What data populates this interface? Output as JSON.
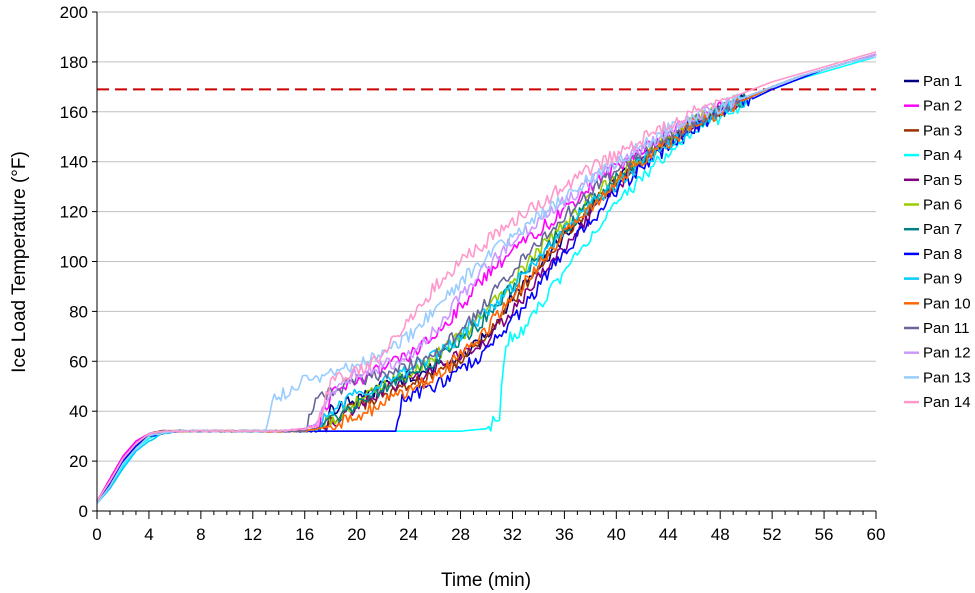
{
  "chart_data": {
    "type": "line",
    "title": "",
    "xlabel": "Time (min)",
    "ylabel": "Ice Load Temperature (°F)",
    "xlim": [
      0,
      60
    ],
    "ylim": [
      0,
      200
    ],
    "x_ticks": [
      0,
      4,
      8,
      12,
      16,
      20,
      24,
      28,
      32,
      36,
      40,
      44,
      48,
      52,
      56,
      60
    ],
    "y_ticks": [
      0,
      20,
      40,
      60,
      80,
      100,
      120,
      140,
      160,
      180,
      200
    ],
    "grid": "horizontal",
    "legend_position": "right",
    "reference_line": {
      "y": 169,
      "color": "#cc0000",
      "style": "dashed"
    },
    "series": [
      {
        "name": "Pan 1",
        "color": "#000080",
        "x": [
          0,
          1,
          2,
          3,
          4,
          5,
          6,
          8,
          10,
          12,
          14,
          16,
          17,
          18,
          20,
          22,
          24,
          26,
          28,
          30,
          32,
          34,
          36,
          38,
          40,
          42,
          44,
          46,
          48,
          50,
          52,
          54,
          56,
          58,
          60
        ],
        "y": [
          4,
          12,
          21,
          27,
          31,
          32,
          32,
          32,
          32,
          32,
          32,
          32,
          33,
          40,
          45,
          50,
          54,
          57,
          61,
          70,
          86,
          98,
          110,
          121,
          132,
          141,
          148,
          155,
          160,
          165,
          170,
          174,
          177,
          180,
          183
        ]
      },
      {
        "name": "Pan 2",
        "color": "#ff00ff",
        "x": [
          0,
          1,
          2,
          3,
          4,
          5,
          6,
          8,
          10,
          12,
          14,
          16,
          17,
          18,
          20,
          22,
          24,
          26,
          28,
          30,
          32,
          34,
          36,
          38,
          40,
          42,
          44,
          46,
          48,
          50,
          52,
          54,
          56,
          58,
          60
        ],
        "y": [
          4,
          13,
          22,
          28,
          31,
          32,
          32,
          32,
          32,
          32,
          32,
          33,
          35,
          46,
          52,
          57,
          62,
          70,
          82,
          95,
          104,
          112,
          121,
          130,
          138,
          145,
          151,
          157,
          162,
          166,
          170,
          174,
          177,
          180,
          183
        ]
      },
      {
        "name": "Pan 3",
        "color": "#993300",
        "x": [
          0,
          1,
          2,
          3,
          4,
          5,
          6,
          8,
          10,
          12,
          14,
          16,
          17,
          18,
          20,
          22,
          24,
          26,
          28,
          30,
          32,
          34,
          36,
          38,
          40,
          42,
          44,
          46,
          48,
          50,
          52,
          54,
          56,
          58,
          60
        ],
        "y": [
          4,
          11,
          20,
          27,
          30,
          31,
          32,
          32,
          32,
          32,
          32,
          32,
          33,
          36,
          42,
          46,
          50,
          54,
          60,
          70,
          84,
          98,
          111,
          122,
          132,
          141,
          148,
          155,
          161,
          165,
          170,
          174,
          177,
          180,
          183
        ]
      },
      {
        "name": "Pan 4",
        "color": "#00ffff",
        "x": [
          0,
          1,
          2,
          3,
          4,
          5,
          6,
          8,
          10,
          12,
          14,
          16,
          18,
          20,
          22,
          24,
          26,
          28,
          30,
          31,
          31.5,
          32,
          33,
          34,
          36,
          38,
          40,
          42,
          44,
          46,
          48,
          50,
          52,
          54,
          56,
          58,
          60
        ],
        "y": [
          4,
          10,
          18,
          25,
          29,
          31,
          32,
          32,
          32,
          32,
          32,
          32,
          32,
          32,
          32,
          32,
          32,
          32,
          33,
          38,
          68,
          70,
          74,
          82,
          96,
          110,
          122,
          134,
          144,
          152,
          158,
          164,
          169,
          173,
          176,
          179,
          182
        ]
      },
      {
        "name": "Pan 5",
        "color": "#800080",
        "x": [
          0,
          1,
          2,
          3,
          4,
          5,
          6,
          8,
          10,
          12,
          14,
          16,
          17,
          18,
          20,
          22,
          24,
          26,
          28,
          30,
          32,
          34,
          36,
          38,
          40,
          42,
          44,
          46,
          48,
          50,
          52,
          54,
          56,
          58,
          60
        ],
        "y": [
          4,
          12,
          21,
          27,
          31,
          32,
          32,
          32,
          32,
          32,
          32,
          32,
          33,
          35,
          42,
          48,
          53,
          57,
          62,
          68,
          80,
          93,
          106,
          118,
          130,
          140,
          148,
          155,
          160,
          165,
          170,
          174,
          177,
          180,
          183
        ]
      },
      {
        "name": "Pan 6",
        "color": "#99cc00",
        "x": [
          0,
          1,
          2,
          3,
          4,
          5,
          6,
          8,
          10,
          12,
          14,
          16,
          17,
          18,
          20,
          22,
          24,
          26,
          28,
          30,
          32,
          34,
          36,
          38,
          40,
          42,
          44,
          46,
          48,
          50,
          52,
          54,
          56,
          58,
          60
        ],
        "y": [
          4,
          12,
          21,
          27,
          31,
          32,
          32,
          32,
          32,
          32,
          32,
          32,
          33,
          36,
          44,
          50,
          55,
          62,
          70,
          80,
          92,
          104,
          115,
          125,
          134,
          142,
          149,
          156,
          161,
          166,
          170,
          174,
          177,
          180,
          183
        ]
      },
      {
        "name": "Pan 7",
        "color": "#008080",
        "x": [
          0,
          1,
          2,
          3,
          4,
          5,
          6,
          8,
          10,
          12,
          14,
          16,
          17,
          18,
          20,
          22,
          24,
          26,
          28,
          30,
          32,
          34,
          36,
          38,
          40,
          42,
          44,
          46,
          48,
          50,
          52,
          54,
          56,
          58,
          60
        ],
        "y": [
          4,
          11,
          20,
          26,
          30,
          31,
          32,
          32,
          32,
          32,
          32,
          32,
          33,
          36,
          43,
          49,
          54,
          60,
          68,
          78,
          90,
          102,
          113,
          123,
          133,
          141,
          148,
          155,
          160,
          165,
          170,
          174,
          177,
          180,
          183
        ]
      },
      {
        "name": "Pan 8",
        "color": "#0000ff",
        "x": [
          0,
          1,
          2,
          3,
          4,
          5,
          6,
          8,
          10,
          12,
          14,
          16,
          18,
          20,
          22,
          23,
          23.5,
          24,
          26,
          28,
          30,
          32,
          34,
          36,
          38,
          40,
          42,
          44,
          46,
          48,
          50,
          52,
          54,
          56,
          58,
          60
        ],
        "y": [
          4,
          11,
          20,
          26,
          30,
          31,
          32,
          32,
          32,
          32,
          32,
          32,
          32,
          32,
          32,
          32,
          44,
          46,
          50,
          56,
          64,
          76,
          90,
          104,
          116,
          128,
          138,
          146,
          153,
          159,
          164,
          169,
          173,
          177,
          180,
          183
        ]
      },
      {
        "name": "Pan 9",
        "color": "#00ccff",
        "x": [
          0,
          1,
          2,
          3,
          4,
          5,
          6,
          8,
          10,
          12,
          14,
          16,
          17,
          18,
          20,
          22,
          24,
          26,
          28,
          30,
          32,
          34,
          36,
          38,
          40,
          42,
          44,
          46,
          48,
          50,
          52,
          54,
          56,
          58,
          60
        ],
        "y": [
          3,
          9,
          17,
          24,
          28,
          31,
          32,
          32,
          32,
          32,
          32,
          32,
          33,
          40,
          47,
          52,
          56,
          62,
          70,
          80,
          90,
          101,
          112,
          122,
          131,
          140,
          147,
          154,
          160,
          165,
          170,
          174,
          177,
          180,
          183
        ]
      },
      {
        "name": "Pan 10",
        "color": "#ff6600",
        "x": [
          0,
          1,
          2,
          3,
          4,
          5,
          6,
          8,
          10,
          12,
          14,
          16,
          17,
          18,
          20,
          22,
          24,
          26,
          28,
          30,
          32,
          34,
          36,
          38,
          40,
          42,
          44,
          46,
          48,
          50,
          52,
          54,
          56,
          58,
          60
        ],
        "y": [
          4,
          12,
          21,
          27,
          31,
          32,
          32,
          32,
          32,
          32,
          32,
          32,
          33,
          34,
          38,
          43,
          48,
          54,
          62,
          73,
          86,
          99,
          111,
          122,
          132,
          141,
          148,
          155,
          160,
          165,
          170,
          174,
          177,
          180,
          183
        ]
      },
      {
        "name": "Pan 11",
        "color": "#666699",
        "x": [
          0,
          1,
          2,
          3,
          4,
          5,
          6,
          8,
          10,
          12,
          14,
          16,
          17,
          18,
          20,
          22,
          24,
          26,
          28,
          30,
          32,
          34,
          36,
          38,
          40,
          42,
          44,
          46,
          48,
          50,
          52,
          54,
          56,
          58,
          60
        ],
        "y": [
          4,
          12,
          21,
          27,
          31,
          32,
          32,
          32,
          32,
          32,
          32,
          32,
          46,
          48,
          52,
          55,
          58,
          63,
          72,
          84,
          96,
          108,
          118,
          128,
          136,
          144,
          150,
          156,
          161,
          166,
          170,
          174,
          177,
          180,
          183
        ]
      },
      {
        "name": "Pan 12",
        "color": "#cc99ff",
        "x": [
          0,
          1,
          2,
          3,
          4,
          5,
          6,
          8,
          10,
          12,
          14,
          16,
          17,
          18,
          20,
          22,
          24,
          26,
          28,
          30,
          32,
          34,
          36,
          38,
          40,
          42,
          44,
          46,
          48,
          50,
          52,
          54,
          56,
          58,
          60
        ],
        "y": [
          4,
          12,
          21,
          27,
          31,
          32,
          32,
          32,
          32,
          32,
          32,
          33,
          36,
          48,
          55,
          58,
          62,
          72,
          86,
          98,
          108,
          116,
          124,
          132,
          139,
          146,
          152,
          158,
          162,
          166,
          170,
          174,
          177,
          180,
          183
        ]
      },
      {
        "name": "Pan 13",
        "color": "#99ccff",
        "x": [
          0,
          1,
          2,
          3,
          4,
          5,
          6,
          8,
          10,
          12,
          13,
          13.5,
          14,
          16,
          18,
          20,
          22,
          24,
          26,
          28,
          30,
          32,
          34,
          36,
          38,
          40,
          42,
          44,
          46,
          48,
          50,
          52,
          54,
          56,
          58,
          60
        ],
        "y": [
          3,
          10,
          19,
          25,
          30,
          31,
          32,
          32,
          32,
          32,
          32,
          44,
          46,
          52,
          55,
          58,
          64,
          70,
          80,
          92,
          102,
          110,
          118,
          126,
          133,
          140,
          147,
          153,
          158,
          162,
          166,
          170,
          174,
          177,
          180,
          182
        ]
      },
      {
        "name": "Pan 14",
        "color": "#ff99cc",
        "x": [
          0,
          1,
          2,
          3,
          4,
          5,
          6,
          8,
          10,
          12,
          14,
          16,
          17,
          18,
          20,
          22,
          24,
          26,
          28,
          30,
          32,
          34,
          36,
          38,
          40,
          42,
          44,
          46,
          48,
          50,
          52,
          54,
          56,
          58,
          60
        ],
        "y": [
          4,
          12,
          21,
          27,
          31,
          32,
          32,
          32,
          32,
          32,
          32,
          33,
          34,
          52,
          56,
          62,
          76,
          90,
          100,
          108,
          116,
          123,
          130,
          137,
          143,
          149,
          155,
          160,
          164,
          168,
          172,
          175,
          178,
          181,
          184
        ]
      }
    ]
  }
}
